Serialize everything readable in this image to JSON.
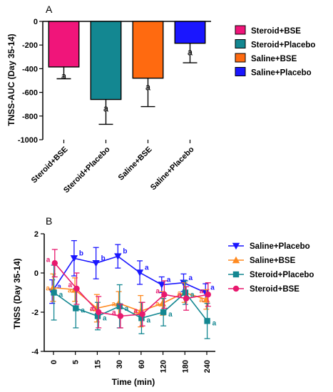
{
  "chart_data": [
    {
      "type": "bar",
      "panel_label": "A",
      "categories": [
        "Steroid+BSE",
        "Steroid+Placebo",
        "Saline+BSE",
        "Saline+Placebo"
      ],
      "values": [
        -385,
        -660,
        -480,
        -185
      ],
      "errors": [
        100,
        210,
        240,
        165
      ],
      "significance": [
        "a",
        "a",
        "a",
        "a"
      ],
      "colors": [
        "#f0157a",
        "#138791",
        "#ff6a10",
        "#1a16ff"
      ],
      "ylabel": "TNSS-AUC (Day 35-14)",
      "ylim": [
        -1000,
        0
      ],
      "yticks": [
        0,
        -200,
        -400,
        -600,
        -800,
        -1000
      ],
      "grid": false,
      "legend": {
        "placement": "right",
        "entries": [
          "Steroid+BSE",
          "Steroid+Placebo",
          "Saline+BSE",
          "Saline+Placebo"
        ]
      }
    },
    {
      "type": "line",
      "panel_label": "B",
      "x": [
        "0",
        "5",
        "15",
        "30",
        "60",
        "120",
        "180",
        "240"
      ],
      "xlabel": "Time (min)",
      "ylabel": "TNSS (Day 35-14)",
      "ylim": [
        -4,
        2
      ],
      "yticks": [
        2,
        0,
        -2,
        -4
      ],
      "grid": false,
      "legend": {
        "placement": "right"
      },
      "series": [
        {
          "name": "Saline+Placebo",
          "marker": "triangle-down",
          "color": "#1a16ff",
          "values": [
            -0.95,
            0.75,
            0.5,
            0.85,
            0.02,
            -0.6,
            -0.5,
            -1.0
          ],
          "errors": [
            0.6,
            0.9,
            0.8,
            0.6,
            0.6,
            0.4,
            0.45,
            0.45
          ],
          "labels": [
            "a",
            "b",
            "b",
            "b",
            "a",
            "a",
            "a",
            "a"
          ]
        },
        {
          "name": "Saline+BSE",
          "marker": "triangle-up",
          "color": "#ff8a20",
          "values": [
            -0.75,
            -0.85,
            -1.8,
            -1.55,
            -1.95,
            -1.55,
            -1.0,
            -1.35
          ],
          "errors": [
            0.7,
            0.6,
            0.7,
            0.6,
            0.8,
            0.6,
            0.5,
            0.5
          ],
          "labels": [
            "a",
            "a",
            "a",
            "a",
            "a",
            "a",
            "a",
            "a"
          ]
        },
        {
          "name": "Steroid+Placebo",
          "marker": "square",
          "color": "#138791",
          "values": [
            -1.0,
            -1.8,
            -2.2,
            -1.7,
            -2.3,
            -2.0,
            -1.0,
            -2.45
          ],
          "errors": [
            1.4,
            1.0,
            0.7,
            1.1,
            0.8,
            0.7,
            0.6,
            0.9
          ],
          "labels": [
            "a",
            "a",
            "a",
            "a",
            "a",
            "a",
            "a",
            "a"
          ]
        },
        {
          "name": "Steroid+BSE",
          "marker": "circle",
          "color": "#e8196e",
          "values": [
            0.5,
            -0.8,
            -2.0,
            -2.2,
            -2.1,
            -1.1,
            -1.3,
            -1.1
          ],
          "errors": [
            0.7,
            0.8,
            0.8,
            0.6,
            0.6,
            0.7,
            0.6,
            0.6
          ],
          "labels": [
            "a",
            "a",
            "a",
            "a",
            "a",
            "a",
            "a",
            "a"
          ]
        }
      ]
    }
  ]
}
